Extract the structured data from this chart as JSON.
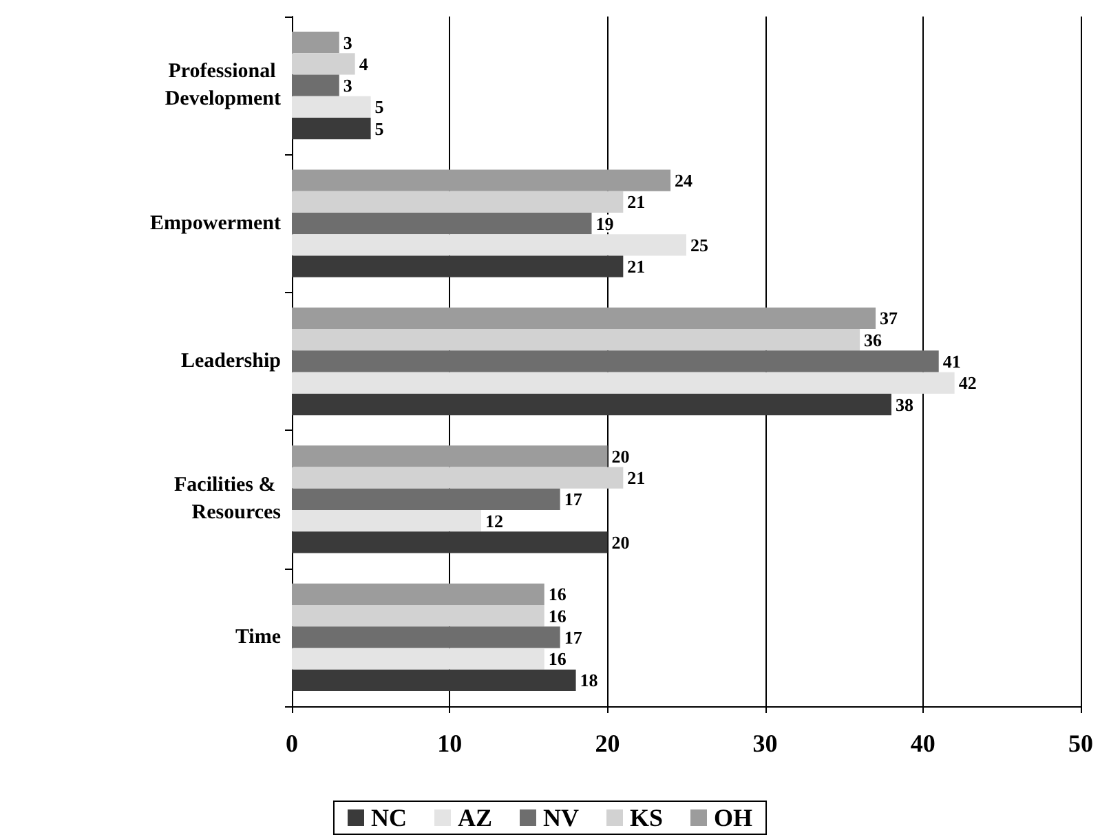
{
  "chart_data": {
    "type": "bar",
    "orientation": "horizontal",
    "categories": [
      "Professional Development",
      "Empowerment",
      "Leadership",
      "Facilities & Resources",
      "Time"
    ],
    "series": [
      {
        "name": "NC",
        "color": "#3a3a3a",
        "values": [
          5,
          21,
          38,
          20,
          18
        ]
      },
      {
        "name": "AZ",
        "color": "#e4e4e4",
        "values": [
          5,
          25,
          42,
          12,
          16
        ]
      },
      {
        "name": "NV",
        "color": "#6e6e6e",
        "values": [
          3,
          19,
          41,
          17,
          17
        ]
      },
      {
        "name": "KS",
        "color": "#d2d2d2",
        "values": [
          4,
          21,
          36,
          21,
          16
        ]
      },
      {
        "name": "OH",
        "color": "#9c9c9c",
        "values": [
          3,
          24,
          37,
          20,
          16
        ]
      }
    ],
    "xlim": [
      0,
      50
    ],
    "xticks": [
      0,
      10,
      20,
      30,
      40,
      50
    ],
    "grid": "x",
    "legend": "bottom",
    "data_labels": true
  }
}
